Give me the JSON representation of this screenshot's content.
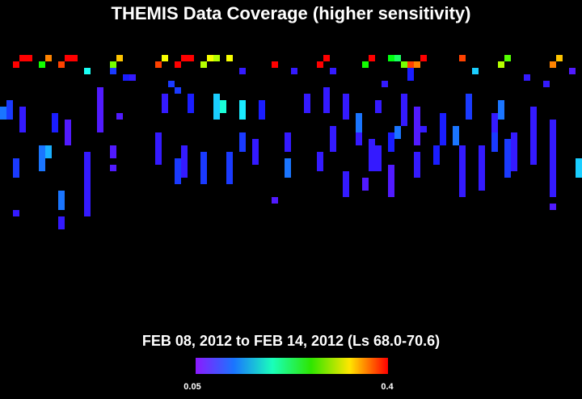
{
  "title": "THEMIS Data Coverage (higher sensitivity)",
  "subtitle": "FEB 08, 2012 to FEB 14, 2012 (Ls 68.0-70.6)",
  "colorbar": {
    "min": 0.05,
    "max": 0.4
  },
  "strips": [
    [
      3,
      0,
      0,
      0.4
    ],
    [
      4,
      0,
      0,
      0.4
    ],
    [
      2,
      1,
      1,
      0.4
    ],
    [
      6,
      1,
      1,
      0.25
    ],
    [
      7,
      0,
      0,
      0.36
    ],
    [
      10,
      0,
      0,
      0.4
    ],
    [
      11,
      0,
      0,
      0.4
    ],
    [
      9,
      1,
      1,
      0.38
    ],
    [
      13,
      2,
      2,
      0.17
    ],
    [
      18,
      0,
      0,
      0.34
    ],
    [
      17,
      1,
      1,
      0.28
    ],
    [
      17,
      2,
      2,
      0.1
    ],
    [
      20,
      3,
      3,
      0.08
    ],
    [
      25,
      0,
      0,
      0.32
    ],
    [
      24,
      1,
      1,
      0.38
    ],
    [
      28,
      0,
      0,
      0.4
    ],
    [
      29,
      0,
      0,
      0.4
    ],
    [
      27,
      1,
      1,
      0.4
    ],
    [
      32,
      0,
      0,
      0.32
    ],
    [
      33,
      0,
      0,
      0.3
    ],
    [
      31,
      1,
      1,
      0.3
    ],
    [
      35,
      0,
      0,
      0.32
    ],
    [
      42,
      1,
      1,
      0.4
    ],
    [
      50,
      0,
      0,
      0.4
    ],
    [
      49,
      1,
      1,
      0.4
    ],
    [
      57,
      0,
      0,
      0.4
    ],
    [
      56,
      1,
      1,
      0.25
    ],
    [
      60,
      0,
      0,
      0.24
    ],
    [
      61,
      0,
      0,
      0.22
    ],
    [
      62,
      1,
      1,
      0.28
    ],
    [
      63,
      1,
      1,
      0.38
    ],
    [
      65,
      0,
      0,
      0.4
    ],
    [
      64,
      1,
      1,
      0.36
    ],
    [
      71,
      0,
      0,
      0.38
    ],
    [
      73,
      2,
      2,
      0.15
    ],
    [
      78,
      0,
      0,
      0.27
    ],
    [
      77,
      1,
      1,
      0.3
    ],
    [
      85,
      1,
      1,
      0.36
    ],
    [
      86,
      0,
      0,
      0.34
    ],
    [
      88,
      2,
      2,
      0.07
    ],
    [
      19,
      3,
      3,
      0.09
    ],
    [
      26,
      4,
      4,
      0.1
    ],
    [
      27,
      5,
      5,
      0.1
    ],
    [
      37,
      2,
      2,
      0.08
    ],
    [
      45,
      2,
      2,
      0.08
    ],
    [
      51,
      2,
      2,
      0.08
    ],
    [
      59,
      4,
      4,
      0.08
    ],
    [
      63,
      2,
      3,
      0.09
    ],
    [
      81,
      3,
      3,
      0.08
    ],
    [
      84,
      4,
      4,
      0.08
    ],
    [
      18,
      9,
      9,
      0.07
    ],
    [
      0,
      8,
      9,
      0.12
    ],
    [
      1,
      7,
      9,
      0.1
    ],
    [
      3,
      8,
      11,
      0.08
    ],
    [
      8,
      9,
      11,
      0.09
    ],
    [
      10,
      10,
      13,
      0.07
    ],
    [
      15,
      5,
      11,
      0.07
    ],
    [
      25,
      6,
      8,
      0.08
    ],
    [
      29,
      6,
      8,
      0.09
    ],
    [
      33,
      6,
      9,
      0.15
    ],
    [
      34,
      7,
      8,
      0.18
    ],
    [
      37,
      7,
      9,
      0.16
    ],
    [
      40,
      7,
      9,
      0.09
    ],
    [
      47,
      6,
      8,
      0.08
    ],
    [
      50,
      5,
      8,
      0.08
    ],
    [
      51,
      11,
      14,
      0.08
    ],
    [
      53,
      6,
      9,
      0.08
    ],
    [
      55,
      10,
      13,
      0.08
    ],
    [
      57,
      13,
      17,
      0.08
    ],
    [
      62,
      6,
      10,
      0.08
    ],
    [
      64,
      8,
      13,
      0.07
    ],
    [
      68,
      9,
      13,
      0.09
    ],
    [
      72,
      6,
      9,
      0.1
    ],
    [
      76,
      9,
      12,
      0.08
    ],
    [
      79,
      12,
      17,
      0.08
    ],
    [
      82,
      8,
      13,
      0.08
    ],
    [
      85,
      10,
      15,
      0.08
    ],
    [
      89,
      16,
      18,
      0.15
    ],
    [
      13,
      15,
      24,
      0.08
    ],
    [
      9,
      21,
      23,
      0.12
    ],
    [
      6,
      14,
      17,
      0.12
    ],
    [
      7,
      14,
      15,
      0.14
    ],
    [
      2,
      16,
      18,
      0.1
    ],
    [
      28,
      14,
      18,
      0.08
    ],
    [
      31,
      15,
      19,
      0.1
    ],
    [
      35,
      15,
      19,
      0.1
    ],
    [
      39,
      13,
      16,
      0.08
    ],
    [
      44,
      12,
      14,
      0.08
    ],
    [
      49,
      15,
      17,
      0.08
    ],
    [
      53,
      18,
      21,
      0.08
    ],
    [
      60,
      17,
      21,
      0.07
    ],
    [
      64,
      15,
      18,
      0.08
    ],
    [
      71,
      14,
      20,
      0.08
    ],
    [
      74,
      14,
      20,
      0.08
    ],
    [
      78,
      13,
      18,
      0.1
    ],
    [
      85,
      16,
      21,
      0.08
    ],
    [
      60,
      12,
      14,
      0.09
    ],
    [
      24,
      12,
      16,
      0.08
    ],
    [
      27,
      16,
      19,
      0.1
    ],
    [
      37,
      12,
      14,
      0.1
    ],
    [
      44,
      16,
      18,
      0.12
    ],
    [
      55,
      9,
      11,
      0.12
    ],
    [
      58,
      14,
      17,
      0.08
    ],
    [
      67,
      14,
      16,
      0.09
    ],
    [
      70,
      11,
      13,
      0.12
    ],
    [
      76,
      12,
      14,
      0.1
    ],
    [
      82,
      14,
      16,
      0.08
    ],
    [
      42,
      22,
      22,
      0.07
    ],
    [
      56,
      19,
      20,
      0.07
    ],
    [
      71,
      20,
      21,
      0.08
    ],
    [
      85,
      23,
      23,
      0.07
    ],
    [
      2,
      24,
      24,
      0.08
    ],
    [
      9,
      25,
      26,
      0.08
    ],
    [
      17,
      14,
      15,
      0.07
    ],
    [
      17,
      17,
      17,
      0.07
    ],
    [
      61,
      11,
      12,
      0.12
    ],
    [
      58,
      7,
      8,
      0.08
    ],
    [
      65,
      11,
      11,
      0.08
    ],
    [
      77,
      7,
      9,
      0.12
    ]
  ]
}
